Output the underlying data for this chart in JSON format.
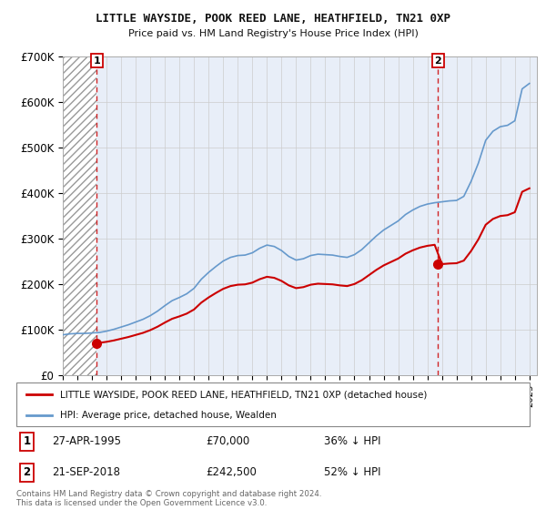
{
  "title": "LITTLE WAYSIDE, POOK REED LANE, HEATHFIELD, TN21 0XP",
  "subtitle": "Price paid vs. HM Land Registry's House Price Index (HPI)",
  "ylim": [
    0,
    700000
  ],
  "yticks": [
    0,
    100000,
    200000,
    300000,
    400000,
    500000,
    600000,
    700000
  ],
  "ytick_labels": [
    "£0",
    "£100K",
    "£200K",
    "£300K",
    "£400K",
    "£500K",
    "£600K",
    "£700K"
  ],
  "xlim_left": 1993.0,
  "xlim_right": 2025.5,
  "sale1_x": 1995.32,
  "sale1_y": 70000,
  "sale2_x": 2018.72,
  "sale2_y": 242500,
  "annotation1_date": "27-APR-1995",
  "annotation1_price": "£70,000",
  "annotation1_hpi": "36% ↓ HPI",
  "annotation2_date": "21-SEP-2018",
  "annotation2_price": "£242,500",
  "annotation2_hpi": "52% ↓ HPI",
  "legend_line1": "LITTLE WAYSIDE, POOK REED LANE, HEATHFIELD, TN21 0XP (detached house)",
  "legend_line2": "HPI: Average price, detached house, Wealden",
  "footnote": "Contains HM Land Registry data © Crown copyright and database right 2024.\nThis data is licensed under the Open Government Licence v3.0.",
  "red_color": "#cc0000",
  "blue_color": "#6699cc",
  "bg_color": "#ffffff",
  "plot_bg": "#e8eef8",
  "hatch_start": 1993.0,
  "hatch_end": 1995.32
}
